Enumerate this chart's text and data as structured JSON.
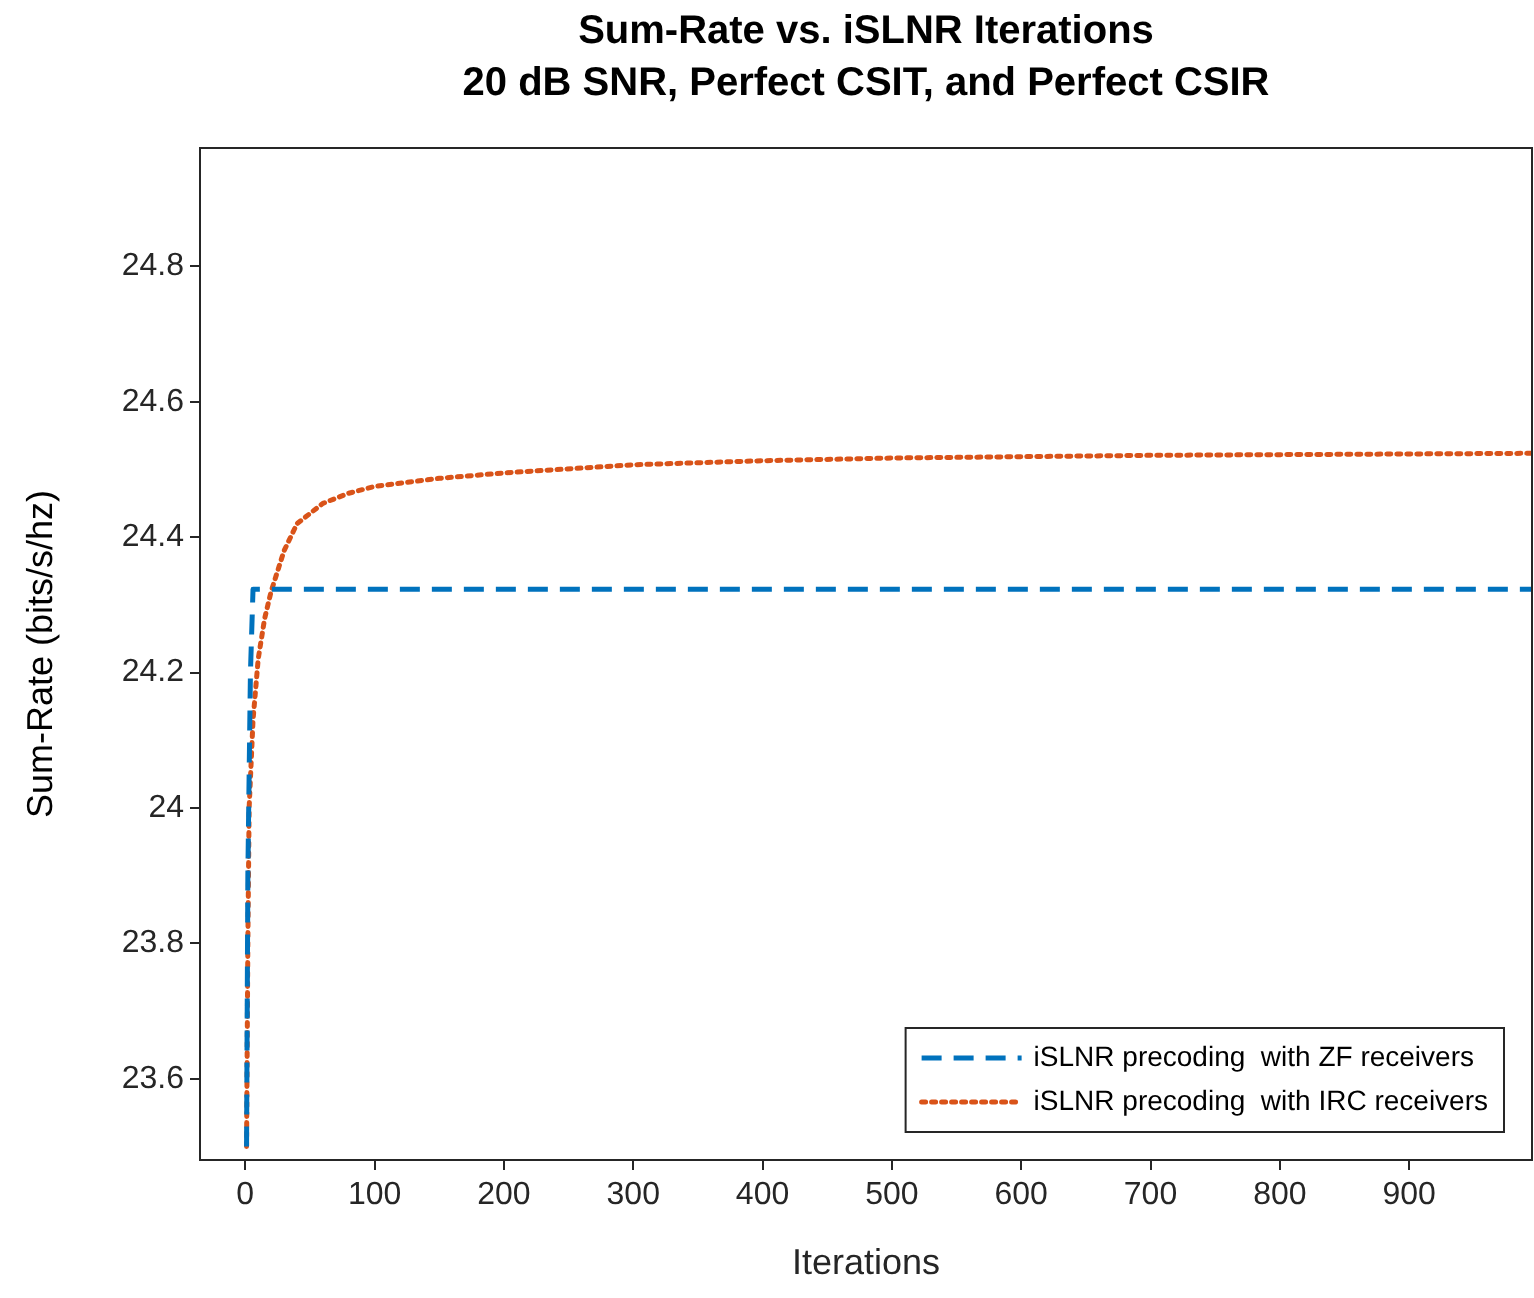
{
  "chart_data": {
    "type": "line",
    "title": "Sum-Rate vs. iSLNR Iterations\n20 dB SNR, Perfect CSIT, and Perfect CSIR",
    "xlabel": "Iterations",
    "ylabel": "Sum-Rate (bits/s/hz)",
    "xlim": [
      -35,
      995
    ],
    "xticks": [
      0,
      100,
      200,
      300,
      400,
      500,
      600,
      700,
      800,
      900
    ],
    "ylim": [
      23.48,
      24.975
    ],
    "yticks": [
      23.6,
      23.8,
      24,
      24.2,
      24.4,
      24.6,
      24.8
    ],
    "grid": false,
    "legend": "bottom right",
    "marker": "none",
    "series": [
      {
        "name": "iSLNR precoding  with ZF receivers",
        "color": "#0072bd",
        "line_style": "dashed",
        "x": [
          1,
          2,
          4,
          6,
          995
        ],
        "values": [
          23.5,
          23.9,
          24.2,
          24.323,
          24.323
        ]
      },
      {
        "name": "iSLNR precoding  with IRC receivers",
        "color": "#d95319",
        "line_style": "dotted",
        "x": [
          1,
          2,
          3,
          6,
          10,
          15,
          20,
          30,
          40,
          60,
          80,
          100,
          150,
          200,
          300,
          400,
          500,
          600,
          700,
          800,
          900,
          995
        ],
        "values": [
          23.5,
          23.8,
          24.0,
          24.13,
          24.22,
          24.28,
          24.32,
          24.38,
          24.42,
          24.45,
          24.465,
          24.475,
          24.487,
          24.495,
          24.507,
          24.513,
          24.517,
          24.519,
          24.521,
          24.522,
          24.523,
          24.524
        ]
      }
    ]
  }
}
